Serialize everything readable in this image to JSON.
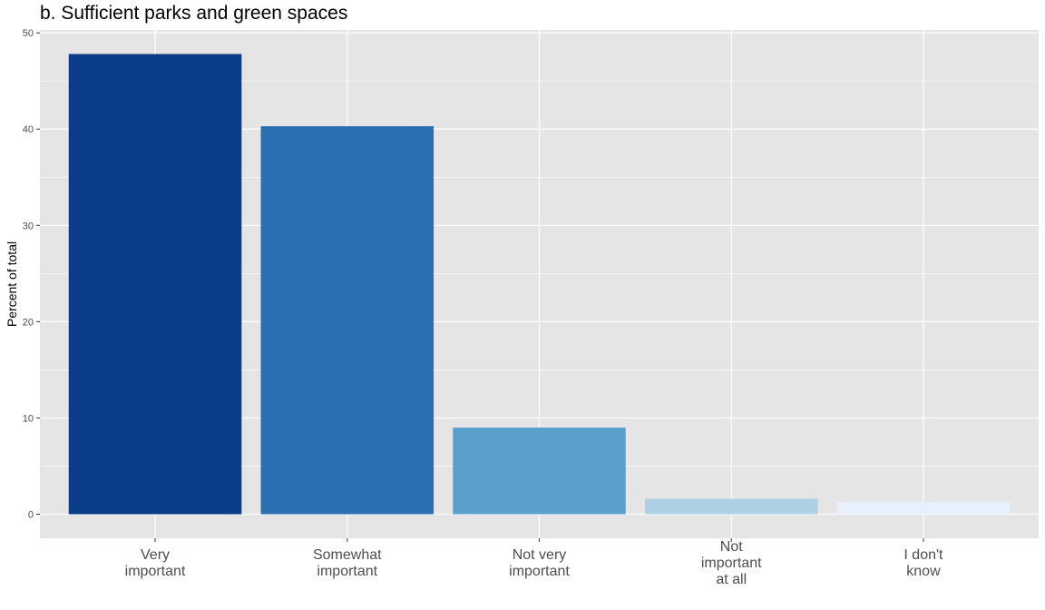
{
  "chart_data": {
    "type": "bar",
    "title": "b. Sufficient parks and green spaces",
    "xlabel": "",
    "ylabel": "Percent of total",
    "categories": [
      [
        "Very",
        "important"
      ],
      [
        "Somewhat",
        "important"
      ],
      [
        "Not very",
        "important"
      ],
      [
        "Not",
        "important",
        "at all"
      ],
      [
        "I don't",
        "know"
      ]
    ],
    "values": [
      47.8,
      40.3,
      9.0,
      1.6,
      1.3
    ],
    "colors": [
      "#0b3c87",
      "#2a6fb1",
      "#5ba0cd",
      "#aecfe4",
      "#e8f0fc"
    ],
    "ylim": [
      -2.5,
      50.3
    ],
    "yticks": [
      0,
      10,
      20,
      30,
      40,
      50
    ],
    "grid": true,
    "panel_background": "#e5e5e5",
    "grid_color": "#ffffff"
  }
}
